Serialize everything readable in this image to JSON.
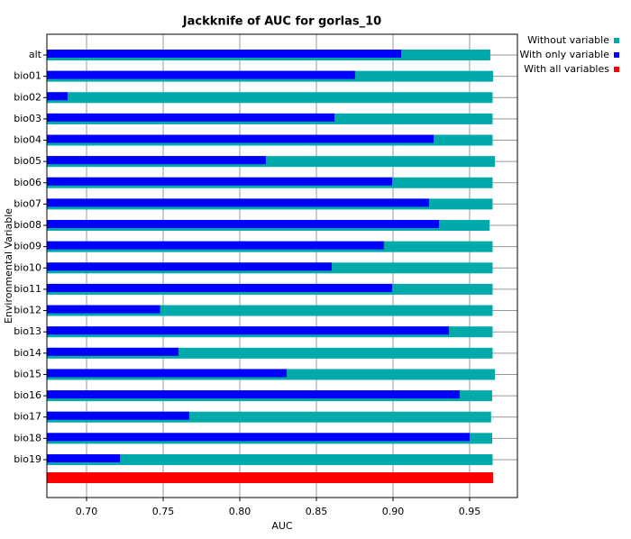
{
  "chart_data": {
    "type": "bar",
    "orientation": "horizontal",
    "title": "Jackknife of AUC for gorlas_10",
    "xlabel": "AUC",
    "ylabel": "Environmental Variable",
    "categories": [
      "alt",
      "bio01",
      "bio02",
      "bio03",
      "bio04",
      "bio05",
      "bio06",
      "bio07",
      "bio08",
      "bio09",
      "bio10",
      "bio11",
      "bio12",
      "bio13",
      "bio14",
      "bio15",
      "bio16",
      "bio17",
      "bio18",
      "bio19"
    ],
    "series": [
      {
        "name": "Without variable",
        "color": "#00aaaa",
        "values": [
          0.9635,
          0.9653,
          0.965,
          0.965,
          0.965,
          0.9665,
          0.965,
          0.965,
          0.963,
          0.965,
          0.965,
          0.965,
          0.965,
          0.965,
          0.965,
          0.9665,
          0.9647,
          0.964,
          0.9647,
          0.965
        ]
      },
      {
        "name": "With only variable",
        "color": "#0000ff",
        "values": [
          0.9053,
          0.8753,
          0.6876,
          0.8618,
          0.9265,
          0.817,
          0.8994,
          0.9235,
          0.93,
          0.894,
          0.86,
          0.8994,
          0.748,
          0.9365,
          0.76,
          0.8306,
          0.9435,
          0.767,
          0.95,
          0.7218
        ]
      }
    ],
    "all_variables": {
      "name": "With all variables",
      "color": "#ff0000",
      "value": 0.9653
    },
    "xlim": [
      0.6741,
      0.9812
    ],
    "xticks": [
      {
        "value": 0.7,
        "label": "0.70"
      },
      0.75,
      {
        "value": 0.8,
        "label": "0.80"
      },
      0.85,
      {
        "value": 0.9,
        "label": "0.90"
      },
      0.95
    ],
    "grid": true,
    "legend": "top-right"
  }
}
